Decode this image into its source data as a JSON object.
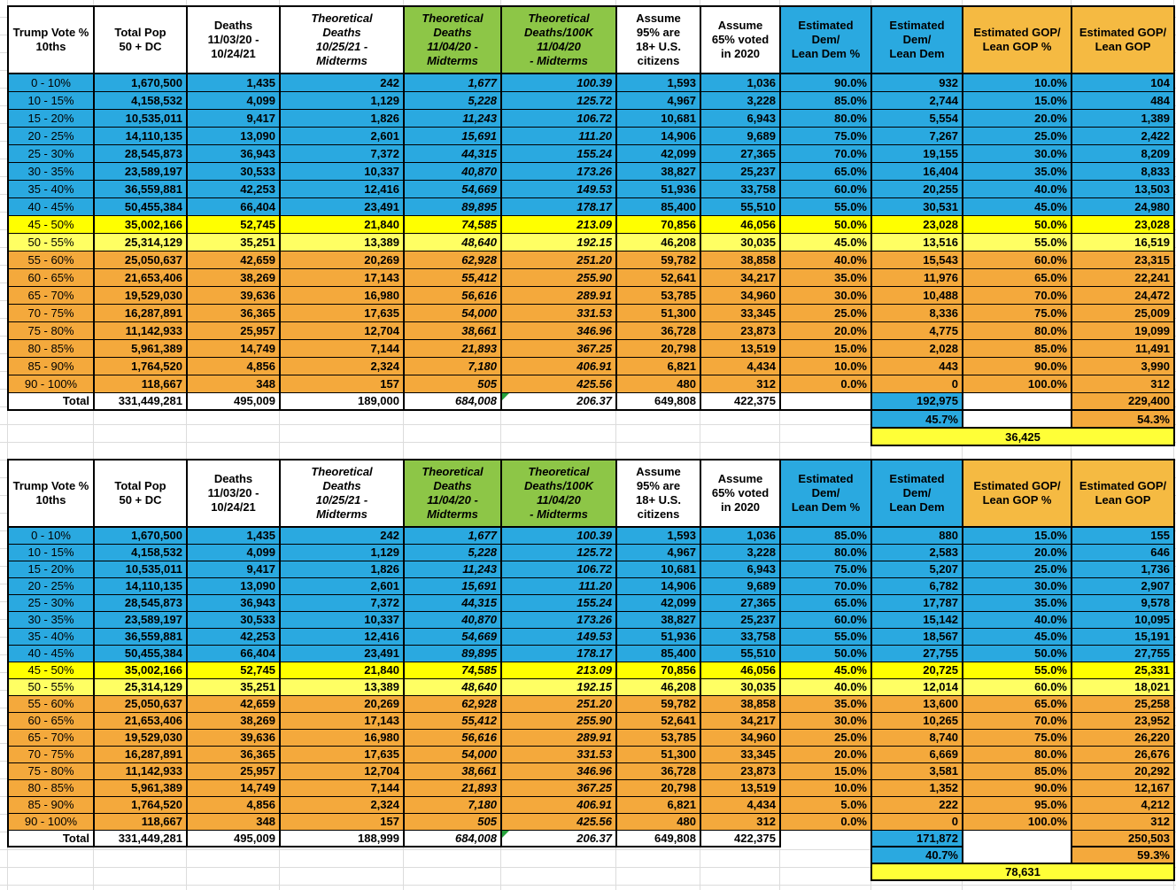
{
  "colors": {
    "dem_blue": "#2AA9E0",
    "gop_orange_row": "#F4A93C",
    "gop_orange_header": "#F5BA42",
    "green_header": "#8DC647",
    "swing_yellow": "#FFFF00",
    "swing_yellow_light": "#FFFF63",
    "net_margin_yellow": "#FFFF37",
    "grid_line": "#DCDCDC",
    "error_triangle_green": "#27A33C"
  },
  "column_headers": [
    {
      "label": "Trump Vote %\n10ths",
      "style": "white",
      "italic": false
    },
    {
      "label": "Total Pop\n50 + DC",
      "style": "white",
      "italic": false
    },
    {
      "label": "Deaths\n11/03/20 -\n10/24/21",
      "style": "white",
      "italic": false
    },
    {
      "label": "Theoretical\nDeaths\n10/25/21 -\nMidterms",
      "style": "white",
      "italic": true
    },
    {
      "label": "Theoretical\nDeaths\n11/04/20 -\nMidterms",
      "style": "green",
      "italic": true
    },
    {
      "label": "Theoretical\nDeaths/100K\n11/04/20\n- Midterms",
      "style": "green",
      "italic": true
    },
    {
      "label": "Assume\n95% are\n18+ U.S.\ncitizens",
      "style": "white",
      "italic": false
    },
    {
      "label": "Assume\n65% voted\nin 2020",
      "style": "white",
      "italic": false
    },
    {
      "label": "Estimated\nDem/\nLean Dem %",
      "style": "blue",
      "italic": false
    },
    {
      "label": "Estimated\nDem/\nLean Dem",
      "style": "blue",
      "italic": false
    },
    {
      "label": "Estimated GOP/\nLean GOP %",
      "style": "orange",
      "italic": false
    },
    {
      "label": "Estimated GOP/\nLean GOP",
      "style": "orange",
      "italic": false
    }
  ],
  "categories": [
    "0 - 10%",
    "10 - 15%",
    "15 - 20%",
    "20 - 25%",
    "25 - 30%",
    "30 - 35%",
    "35 - 40%",
    "40 - 45%",
    "45 - 50%",
    "50 - 55%",
    "55 - 60%",
    "60 - 65%",
    "65 - 70%",
    "70 - 75%",
    "75 - 80%",
    "80 - 85%",
    "85 - 90%",
    "90 - 100%"
  ],
  "row_styles": [
    "blue",
    "blue",
    "blue",
    "blue",
    "blue",
    "blue",
    "blue",
    "blue",
    "yellow",
    "yellow-light",
    "orange",
    "orange",
    "orange",
    "orange",
    "orange",
    "orange",
    "orange",
    "orange"
  ],
  "shared_rows": [
    [
      "1,670,500",
      "1,435",
      "242",
      "1,677",
      "100.39",
      "1,593",
      "1,036"
    ],
    [
      "4,158,532",
      "4,099",
      "1,129",
      "5,228",
      "125.72",
      "4,967",
      "3,228"
    ],
    [
      "10,535,011",
      "9,417",
      "1,826",
      "11,243",
      "106.72",
      "10,681",
      "6,943"
    ],
    [
      "14,110,135",
      "13,090",
      "2,601",
      "15,691",
      "111.20",
      "14,906",
      "9,689"
    ],
    [
      "28,545,873",
      "36,943",
      "7,372",
      "44,315",
      "155.24",
      "42,099",
      "27,365"
    ],
    [
      "23,589,197",
      "30,533",
      "10,337",
      "40,870",
      "173.26",
      "38,827",
      "25,237"
    ],
    [
      "36,559,881",
      "42,253",
      "12,416",
      "54,669",
      "149.53",
      "51,936",
      "33,758"
    ],
    [
      "50,455,384",
      "66,404",
      "23,491",
      "89,895",
      "178.17",
      "85,400",
      "55,510"
    ],
    [
      "35,002,166",
      "52,745",
      "21,840",
      "74,585",
      "213.09",
      "70,856",
      "46,056"
    ],
    [
      "25,314,129",
      "35,251",
      "13,389",
      "48,640",
      "192.15",
      "46,208",
      "30,035"
    ],
    [
      "25,050,637",
      "42,659",
      "20,269",
      "62,928",
      "251.20",
      "59,782",
      "38,858"
    ],
    [
      "21,653,406",
      "38,269",
      "17,143",
      "55,412",
      "255.90",
      "52,641",
      "34,217"
    ],
    [
      "19,529,030",
      "39,636",
      "16,980",
      "56,616",
      "289.91",
      "53,785",
      "34,960"
    ],
    [
      "16,287,891",
      "36,365",
      "17,635",
      "54,000",
      "331.53",
      "51,300",
      "33,345"
    ],
    [
      "11,142,933",
      "25,957",
      "12,704",
      "38,661",
      "346.96",
      "36,728",
      "23,873"
    ],
    [
      "5,961,389",
      "14,749",
      "7,144",
      "21,893",
      "367.25",
      "20,798",
      "13,519"
    ],
    [
      "1,764,520",
      "4,856",
      "2,324",
      "7,180",
      "406.91",
      "6,821",
      "4,434"
    ],
    [
      "118,667",
      "348",
      "157",
      "505",
      "425.56",
      "480",
      "312"
    ]
  ],
  "tables": [
    {
      "name": "scenario-1",
      "dem_gop_rows": [
        [
          "90.0%",
          "932",
          "10.0%",
          "104"
        ],
        [
          "85.0%",
          "2,744",
          "15.0%",
          "484"
        ],
        [
          "80.0%",
          "5,554",
          "20.0%",
          "1,389"
        ],
        [
          "75.0%",
          "7,267",
          "25.0%",
          "2,422"
        ],
        [
          "70.0%",
          "19,155",
          "30.0%",
          "8,209"
        ],
        [
          "65.0%",
          "16,404",
          "35.0%",
          "8,833"
        ],
        [
          "60.0%",
          "20,255",
          "40.0%",
          "13,503"
        ],
        [
          "55.0%",
          "30,531",
          "45.0%",
          "24,980"
        ],
        [
          "50.0%",
          "23,028",
          "50.0%",
          "23,028"
        ],
        [
          "45.0%",
          "13,516",
          "55.0%",
          "16,519"
        ],
        [
          "40.0%",
          "15,543",
          "60.0%",
          "23,315"
        ],
        [
          "35.0%",
          "11,976",
          "65.0%",
          "22,241"
        ],
        [
          "30.0%",
          "10,488",
          "70.0%",
          "24,472"
        ],
        [
          "25.0%",
          "8,336",
          "75.0%",
          "25,009"
        ],
        [
          "20.0%",
          "4,775",
          "80.0%",
          "19,099"
        ],
        [
          "15.0%",
          "2,028",
          "85.0%",
          "11,491"
        ],
        [
          "10.0%",
          "443",
          "90.0%",
          "3,990"
        ],
        [
          "0.0%",
          "0",
          "100.0%",
          "312"
        ]
      ],
      "total": {
        "label": "Total",
        "shared": [
          "331,449,281",
          "495,009",
          "189,000",
          "684,008",
          "206.37",
          "649,808",
          "422,375"
        ],
        "dem": "192,975",
        "gop": "229,400"
      },
      "percent": {
        "dem": "45.7%",
        "gop": "54.3%"
      },
      "net_margin": "36,425"
    },
    {
      "name": "scenario-2",
      "dem_gop_rows": [
        [
          "85.0%",
          "880",
          "15.0%",
          "155"
        ],
        [
          "80.0%",
          "2,583",
          "20.0%",
          "646"
        ],
        [
          "75.0%",
          "5,207",
          "25.0%",
          "1,736"
        ],
        [
          "70.0%",
          "6,782",
          "30.0%",
          "2,907"
        ],
        [
          "65.0%",
          "17,787",
          "35.0%",
          "9,578"
        ],
        [
          "60.0%",
          "15,142",
          "40.0%",
          "10,095"
        ],
        [
          "55.0%",
          "18,567",
          "45.0%",
          "15,191"
        ],
        [
          "50.0%",
          "27,755",
          "50.0%",
          "27,755"
        ],
        [
          "45.0%",
          "20,725",
          "55.0%",
          "25,331"
        ],
        [
          "40.0%",
          "12,014",
          "60.0%",
          "18,021"
        ],
        [
          "35.0%",
          "13,600",
          "65.0%",
          "25,258"
        ],
        [
          "30.0%",
          "10,265",
          "70.0%",
          "23,952"
        ],
        [
          "25.0%",
          "8,740",
          "75.0%",
          "26,220"
        ],
        [
          "20.0%",
          "6,669",
          "80.0%",
          "26,676"
        ],
        [
          "15.0%",
          "3,581",
          "85.0%",
          "20,292"
        ],
        [
          "10.0%",
          "1,352",
          "90.0%",
          "12,167"
        ],
        [
          "5.0%",
          "222",
          "95.0%",
          "4,212"
        ],
        [
          "0.0%",
          "0",
          "100.0%",
          "312"
        ]
      ],
      "total": {
        "label": "Total",
        "shared": [
          "331,449,281",
          "495,009",
          "188,999",
          "684,008",
          "206.37",
          "649,808",
          "422,375"
        ],
        "dem": "171,872",
        "gop": "250,503"
      },
      "percent": {
        "dem": "40.7%",
        "gop": "59.3%"
      },
      "net_margin": "78,631"
    }
  ]
}
